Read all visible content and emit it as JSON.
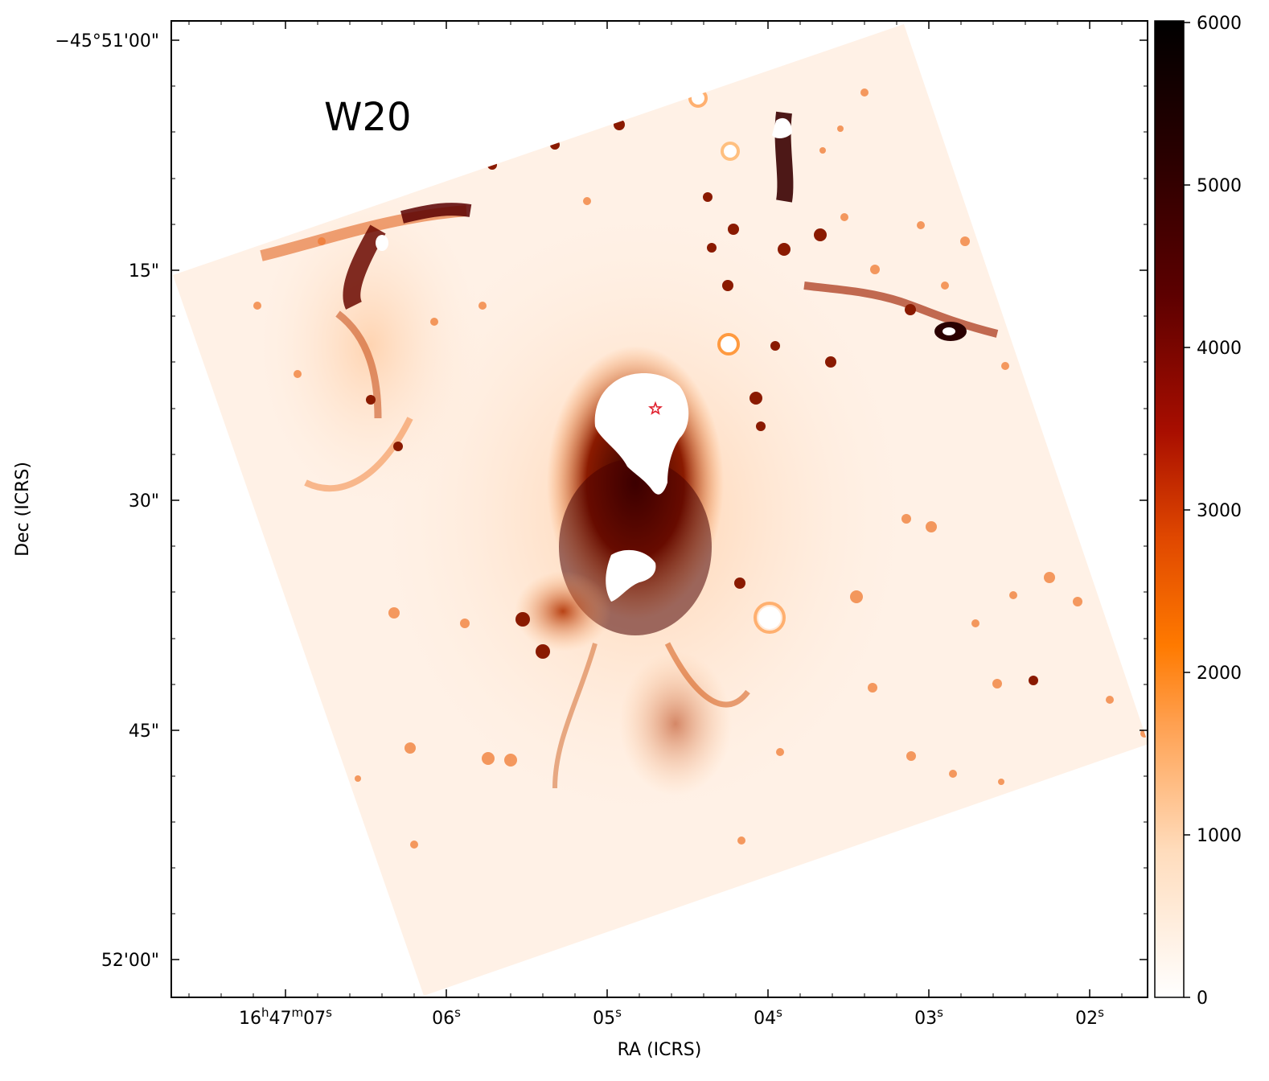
{
  "figure": {
    "panel_label": "W20",
    "image_description_colormap": "gist_heat_r",
    "xaxis": {
      "label": "RA (ICRS)",
      "ticks": [
        {
          "main": "16",
          "sup1": "h",
          "mid": "47",
          "sup2": "m",
          "end": "07",
          "sup3": "s"
        },
        {
          "main": "06",
          "sup1": "s"
        },
        {
          "main": "05",
          "sup1": "s"
        },
        {
          "main": "04",
          "sup1": "s"
        },
        {
          "main": "03",
          "sup1": "s"
        },
        {
          "main": "02",
          "sup1": "s"
        }
      ]
    },
    "yaxis": {
      "label": "Dec (ICRS)",
      "ticks": [
        "−45°51'00\"",
        "15\"",
        "30\"",
        "45\"",
        "52'00\""
      ]
    },
    "colorbar": {
      "ticks": [
        "6000",
        "5000",
        "4000",
        "3000",
        "2000",
        "1000",
        "0"
      ],
      "range": [
        0,
        6000
      ],
      "colors": [
        "#ffffff",
        "#ffe4cc",
        "#ffb070",
        "#ff7f00",
        "#f05a00",
        "#c01a00",
        "#7a0000",
        "#3a0000",
        "#000000"
      ]
    },
    "marker": {
      "symbol": "star",
      "color": "#e0202e"
    }
  }
}
